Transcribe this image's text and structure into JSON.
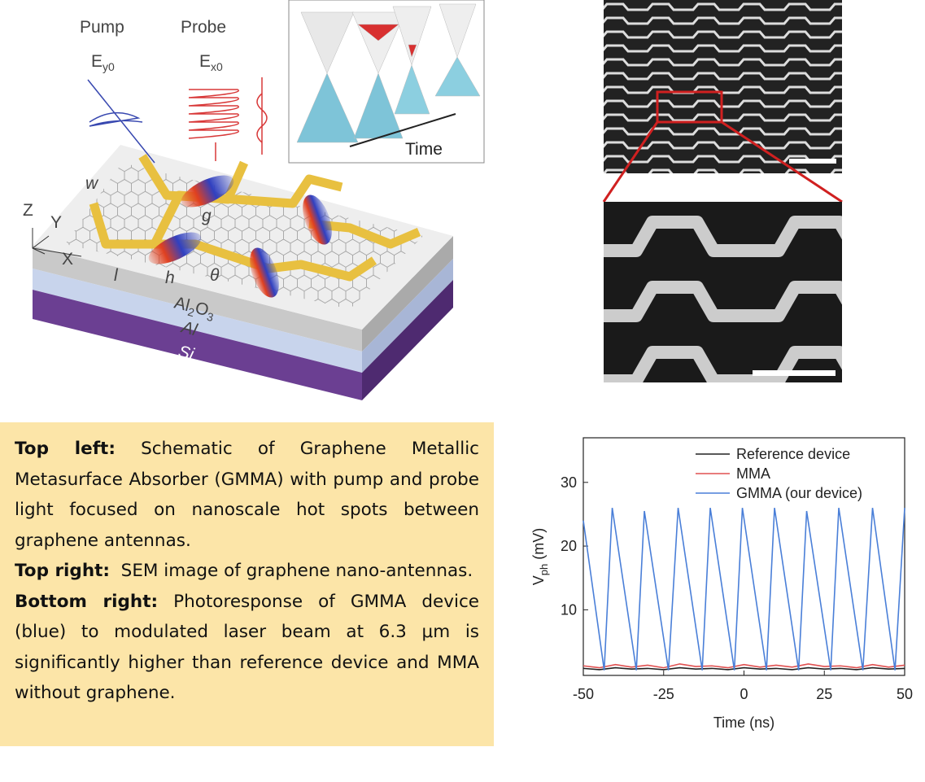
{
  "schematic": {
    "pump": "Pump",
    "probe": "Probe",
    "pump_field": {
      "base": "E",
      "sub": "y0"
    },
    "probe_field": {
      "base": "E",
      "sub": "x0"
    },
    "time": "Time",
    "axes": [
      "Z",
      "Y",
      "X"
    ],
    "dims": [
      "w",
      "g",
      "l",
      "h",
      "θ"
    ],
    "layers": {
      "oxide": [
        "Al",
        "2",
        "O",
        "3"
      ],
      "metal": "Al",
      "substrate": "Si"
    }
  },
  "caption": [
    {
      "label": "Top left:",
      "text": " Schematic of Graphene Metallic Metasurface Absorber (GMMA) with pump and probe light focused on nanoscale hot spots between graphene antennas."
    },
    {
      "label": "Top right:",
      "text": "  SEM image of graphene nano-antennas."
    },
    {
      "label": "Bottom right:",
      "text": " Photoresponse of GMMA device (blue) to modulated laser beam at 6.3 μm is significantly higher than reference device and MMA without graphene."
    }
  ],
  "chart_data": {
    "type": "line",
    "xlabel": "Time (ns)",
    "ylabel": {
      "base": "V",
      "sub": "ph",
      "unit": "(mV)"
    },
    "xlim": [
      -50,
      50
    ],
    "ylim": [
      -0.3,
      37
    ],
    "xticks": [
      -50,
      -25,
      0,
      25,
      50
    ],
    "yticks": [
      10,
      20,
      30
    ],
    "legend": "upper right",
    "series": [
      {
        "name": "Reference device",
        "color": "#222222",
        "x": [
          -50,
          -45,
          -40,
          -35,
          -30,
          -25,
          -20,
          -15,
          -10,
          -5,
          0,
          5,
          10,
          15,
          20,
          25,
          30,
          35,
          40,
          45,
          50
        ],
        "values": [
          0.8,
          0.6,
          0.9,
          0.7,
          0.8,
          0.6,
          0.9,
          0.7,
          0.8,
          0.6,
          0.9,
          0.7,
          0.8,
          0.6,
          0.9,
          0.7,
          0.8,
          0.6,
          0.9,
          0.7,
          0.8
        ]
      },
      {
        "name": "MMA",
        "color": "#e05050",
        "x": [
          -50,
          -45,
          -40,
          -35,
          -30,
          -25,
          -20,
          -15,
          -10,
          -5,
          0,
          5,
          10,
          15,
          20,
          25,
          30,
          35,
          40,
          45,
          50
        ],
        "values": [
          1.2,
          0.9,
          1.4,
          1.0,
          1.3,
          0.9,
          1.5,
          1.1,
          1.2,
          0.9,
          1.4,
          1.0,
          1.3,
          1.0,
          1.5,
          1.1,
          1.2,
          0.9,
          1.4,
          1.0,
          1.3
        ]
      },
      {
        "name": "GMMA (our device)",
        "color": "#4a7fd8",
        "x": [
          -50,
          -43.5,
          -41,
          -33.5,
          -31,
          -23.5,
          -20.5,
          -13,
          -10.5,
          -3,
          -0.5,
          7,
          9.5,
          17,
          19.5,
          27,
          29.5,
          37,
          40,
          47,
          50
        ],
        "values": [
          24,
          0.5,
          26,
          0.5,
          25.5,
          0.5,
          26,
          0.5,
          26,
          0.5,
          26,
          0.5,
          26,
          0.5,
          25.5,
          0.5,
          26,
          0.5,
          26,
          0.5,
          26
        ]
      }
    ]
  }
}
